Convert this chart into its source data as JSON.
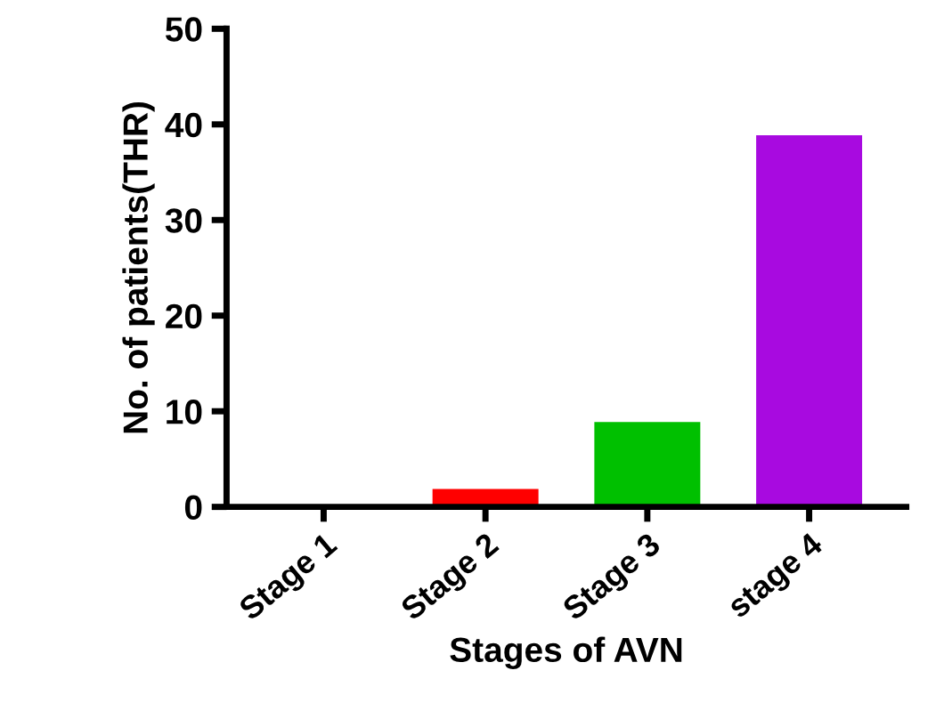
{
  "chart_data": {
    "type": "bar",
    "xlabel": "Stages of AVN",
    "ylabel": "No. of patients(THR)",
    "categories": [
      "Stage 1",
      "Stage 2",
      "Stage 3",
      "stage 4"
    ],
    "values": [
      0,
      2,
      9,
      39
    ],
    "colors": [
      null,
      "#ff0000",
      "#00c000",
      "#a80ae0"
    ],
    "ylim": [
      0,
      50
    ],
    "yticks": [
      0,
      10,
      20,
      30,
      40,
      50
    ],
    "grid": false,
    "legend": false
  }
}
